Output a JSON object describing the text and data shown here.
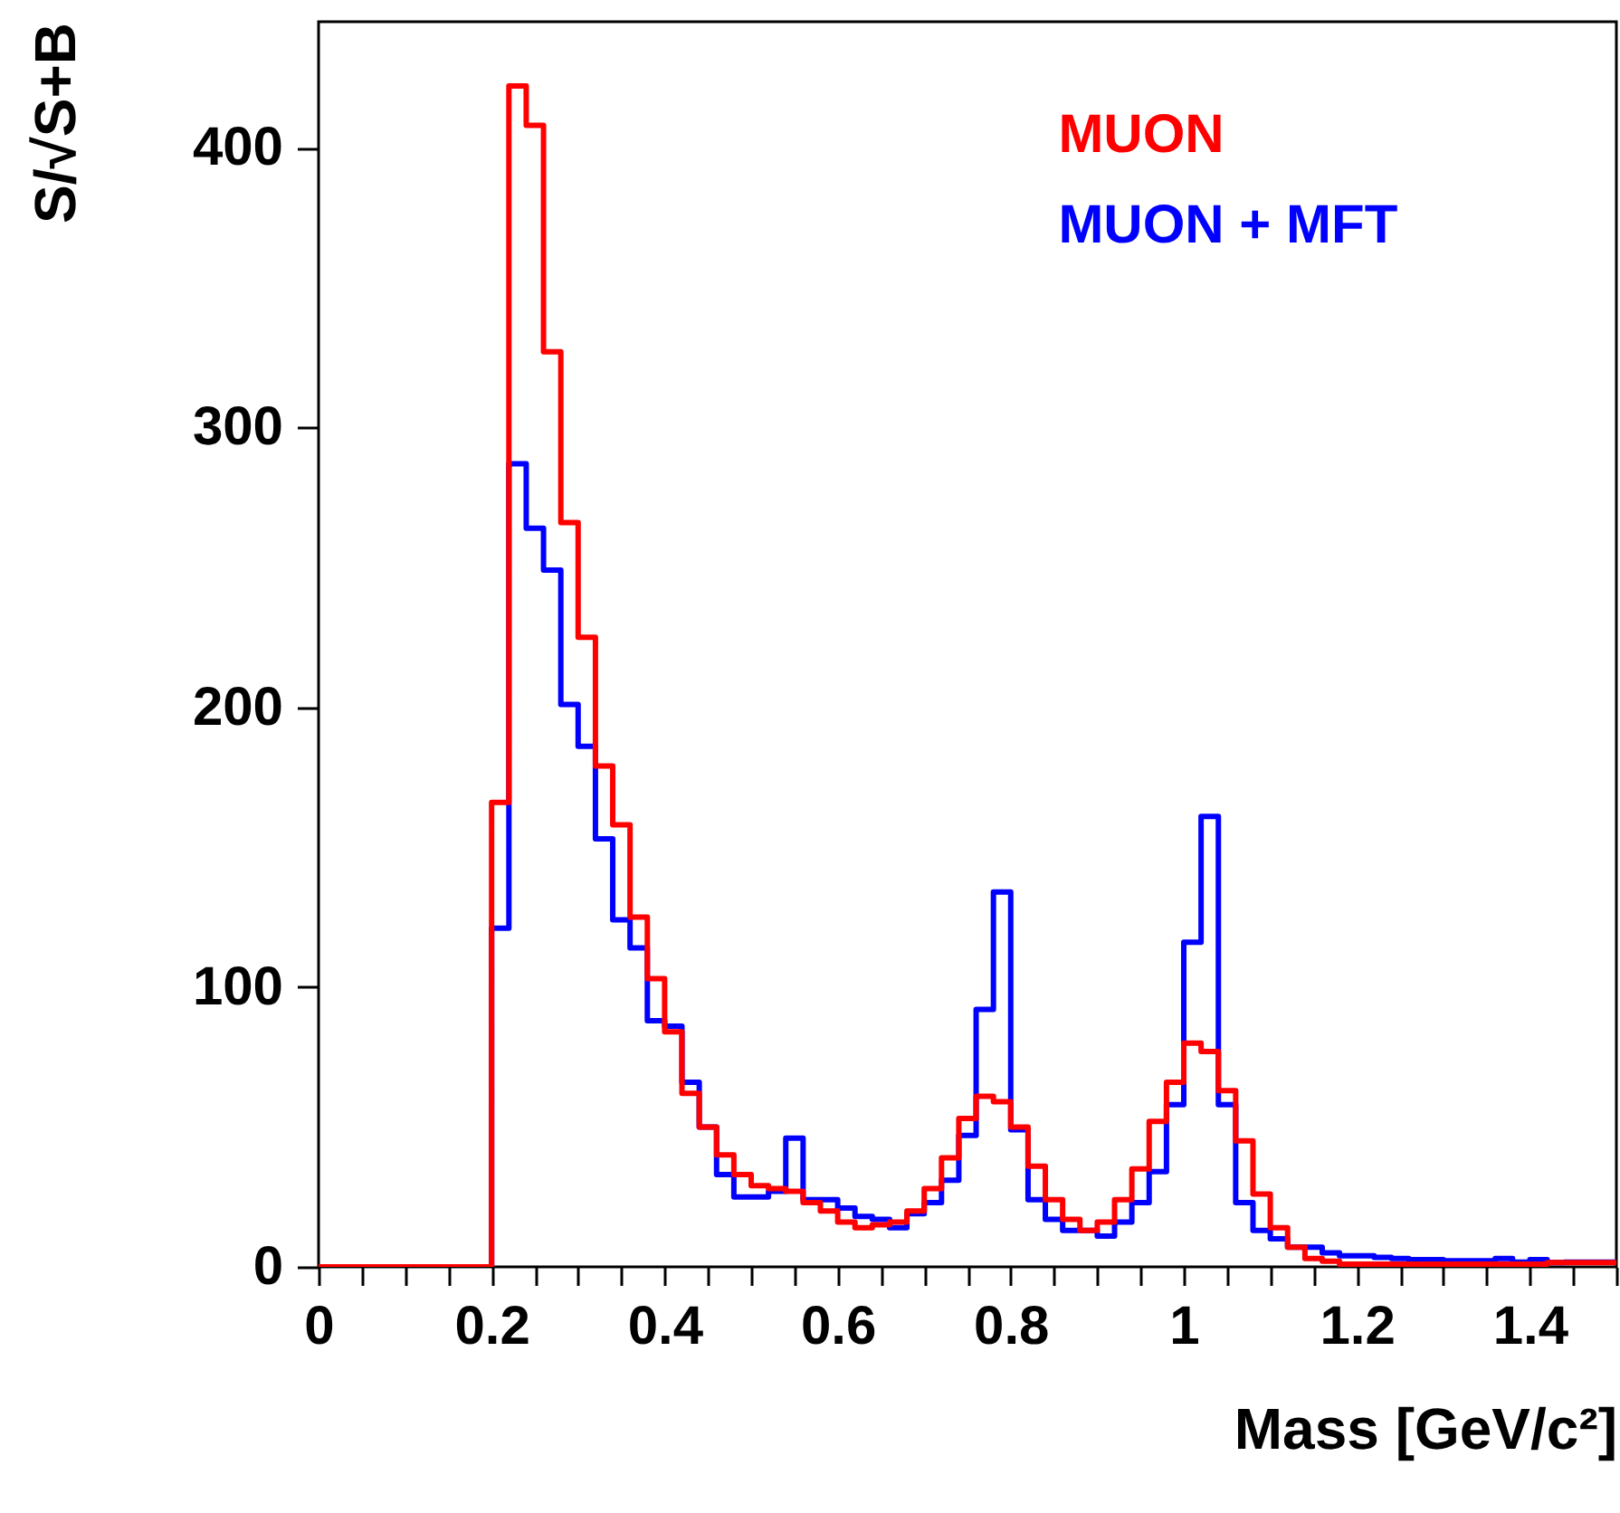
{
  "chart_data": {
    "type": "histogram",
    "xlabel": "Mass  [GeV/c²]",
    "ylabel": "S/√S+B",
    "bins": [
      0,
      0.02,
      0.04,
      0.06,
      0.08,
      0.1,
      0.12,
      0.14,
      0.16,
      0.18,
      0.2,
      0.22,
      0.24,
      0.26,
      0.28,
      0.3,
      0.32,
      0.34,
      0.36,
      0.38,
      0.4,
      0.42,
      0.44,
      0.46,
      0.48,
      0.5,
      0.52,
      0.54,
      0.56,
      0.58,
      0.6,
      0.62,
      0.64,
      0.66,
      0.68,
      0.7,
      0.72,
      0.74,
      0.76,
      0.78,
      0.8,
      0.82,
      0.84,
      0.86,
      0.88,
      0.9,
      0.92,
      0.94,
      0.96,
      0.98,
      1,
      1.02,
      1.04,
      1.06,
      1.08,
      1.1,
      1.12,
      1.14,
      1.16,
      1.18,
      1.2,
      1.22,
      1.24,
      1.26,
      1.28,
      1.3,
      1.32,
      1.34,
      1.36,
      1.38,
      1.4,
      1.42,
      1.44,
      1.46,
      1.48,
      1.5
    ],
    "series": [
      {
        "name": "MUON + MFT",
        "color": "#0000ff",
        "values": [
          0,
          0,
          0,
          0,
          0,
          0,
          0,
          0,
          0,
          0,
          121,
          287,
          264,
          249,
          201,
          186,
          153,
          124,
          114,
          88,
          86,
          66,
          50,
          33,
          25,
          25,
          27,
          46,
          24,
          24,
          21,
          18,
          17,
          14,
          19,
          23,
          31,
          47,
          92,
          134,
          49,
          24,
          17,
          13,
          13,
          11,
          16,
          23,
          34,
          58,
          116,
          161,
          58,
          23,
          13,
          10,
          7,
          7,
          5,
          4,
          4,
          3.4,
          3,
          2.6,
          2.6,
          2.2,
          2.2,
          2.2,
          3,
          1.7,
          2.6,
          1.5,
          1.7,
          1.7,
          1.7
        ]
      },
      {
        "name": "MUON",
        "color": "#ff0000",
        "values": [
          0,
          0,
          0,
          0,
          0,
          0,
          0,
          0,
          0,
          0,
          166,
          422,
          408,
          327,
          266,
          225,
          179,
          158,
          125,
          103,
          84,
          62,
          50,
          40,
          33,
          29,
          28,
          27,
          23,
          20,
          16,
          14,
          15,
          16,
          20,
          28,
          39,
          53,
          61,
          59,
          50,
          36,
          24,
          17,
          13,
          16,
          24,
          35,
          52,
          66,
          80,
          77,
          63,
          45,
          26,
          14,
          7,
          3,
          2,
          1,
          1,
          1,
          1,
          1,
          1,
          1,
          1,
          1,
          1,
          1,
          1,
          1.5,
          1.5,
          1.5,
          1.5
        ]
      }
    ],
    "xlim": [
      0,
      1.5
    ],
    "xticks": [
      0,
      {
        "value": 0.05,
        "label": null
      },
      {
        "value": 0.1,
        "label": null
      },
      {
        "value": 0.15,
        "label": null
      },
      0.2,
      {
        "value": 0.25,
        "label": null
      },
      {
        "value": 0.3,
        "label": null
      },
      {
        "value": 0.35,
        "label": null
      },
      0.4,
      {
        "value": 0.45,
        "label": null
      },
      {
        "value": 0.5,
        "label": null
      },
      {
        "value": 0.55,
        "label": null
      },
      0.6,
      {
        "value": 0.65,
        "label": null
      },
      {
        "value": 0.7,
        "label": null
      },
      {
        "value": 0.75,
        "label": null
      },
      0.8,
      {
        "value": 0.85,
        "label": null
      },
      {
        "value": 0.9,
        "label": null
      },
      {
        "value": 0.95,
        "label": null
      },
      1,
      {
        "value": 1.05,
        "label": null
      },
      {
        "value": 1.1,
        "label": null
      },
      {
        "value": 1.15,
        "label": null
      },
      1.2,
      {
        "value": 1.25,
        "label": null
      },
      {
        "value": 1.3,
        "label": null
      },
      {
        "value": 1.35,
        "label": null
      },
      1.4,
      {
        "value": 1.45,
        "label": null
      },
      {
        "value": 1.5,
        "label": null
      }
    ],
    "ylim": [
      0,
      445
    ],
    "yticks": [
      0,
      100,
      200,
      300,
      400
    ],
    "legend": "top right",
    "grid": false
  }
}
